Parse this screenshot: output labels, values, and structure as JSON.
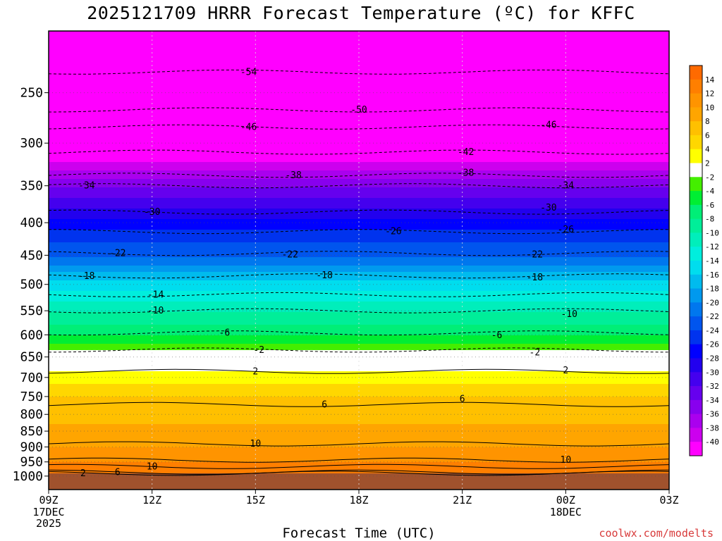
{
  "title": "2025121709 HRRR Forecast Temperature (ºC) for KFFC",
  "credit": "coolwx.com/modelts",
  "chart_data": {
    "type": "heatmap",
    "title": "2025121709 HRRR Forecast Temperature (ºC) for KFFC",
    "xlabel": "Forecast Time (UTC)",
    "ylabel": "",
    "x_ticks": [
      {
        "label": "09Z",
        "sub": [
          "17DEC",
          "2025"
        ],
        "hour": 0
      },
      {
        "label": "12Z",
        "sub": [],
        "hour": 3
      },
      {
        "label": "15Z",
        "sub": [],
        "hour": 6
      },
      {
        "label": "18Z",
        "sub": [],
        "hour": 9
      },
      {
        "label": "21Z",
        "sub": [],
        "hour": 12
      },
      {
        "label": "00Z",
        "sub": [
          "18DEC"
        ],
        "hour": 15
      },
      {
        "label": "03Z",
        "sub": [],
        "hour": 18
      }
    ],
    "xlim": [
      0,
      18
    ],
    "y_ticks": [
      250,
      300,
      350,
      400,
      450,
      500,
      550,
      600,
      650,
      700,
      750,
      800,
      850,
      900,
      950,
      1000
    ],
    "ylim": [
      1050,
      200
    ],
    "y_scale": "log",
    "colorbar": {
      "labels": [
        "14",
        "12",
        "10",
        "8",
        "6",
        "4",
        "2",
        "-2",
        "-4",
        "-6",
        "-8",
        "-10",
        "-12",
        "-14",
        "-16",
        "-18",
        "-20",
        "-22",
        "-24",
        "-26",
        "-28",
        "-30",
        "-32",
        "-34",
        "-36",
        "-38",
        "-40"
      ],
      "colors": [
        "#ff6a00",
        "#ff7f00",
        "#ff9400",
        "#ffa500",
        "#ffc000",
        "#ffd700",
        "#ffff00",
        "#ffffff",
        "#44ee00",
        "#00ee33",
        "#00ee77",
        "#00ee99",
        "#00eebb",
        "#00eedd",
        "#00ddee",
        "#00bbee",
        "#0099ee",
        "#0077ee",
        "#0055ee",
        "#0033ee",
        "#0000ff",
        "#2200ee",
        "#4400ee",
        "#6600ee",
        "#8800ee",
        "#aa00ee",
        "#cc00ee",
        "#ff00ff"
      ]
    },
    "levels_C": [
      {
        "p": 1000,
        "t": 13
      },
      {
        "p": 950,
        "t": 12
      },
      {
        "p": 900,
        "t": 10
      },
      {
        "p": 850,
        "t": 9
      },
      {
        "p": 800,
        "t": 7
      },
      {
        "p": 750,
        "t": 6
      },
      {
        "p": 700,
        "t": 3
      },
      {
        "p": 650,
        "t": 0
      },
      {
        "p": 600,
        "t": -6
      },
      {
        "p": 550,
        "t": -10
      },
      {
        "p": 500,
        "t": -15
      },
      {
        "p": 450,
        "t": -22
      },
      {
        "p": 400,
        "t": -27
      },
      {
        "p": 350,
        "t": -34
      },
      {
        "p": 300,
        "t": -44
      },
      {
        "p": 250,
        "t": -50
      },
      {
        "p": 200,
        "t": -57
      }
    ],
    "surface_pressure": 990,
    "contour_labels": [
      {
        "text": "-54",
        "hour": 5.8,
        "p": 232
      },
      {
        "text": "-50",
        "hour": 9.0,
        "p": 266
      },
      {
        "text": "-46",
        "hour": 5.8,
        "p": 283
      },
      {
        "text": "-46",
        "hour": 14.5,
        "p": 281
      },
      {
        "text": "-42",
        "hour": 12.1,
        "p": 310
      },
      {
        "text": "-38",
        "hour": 7.1,
        "p": 337
      },
      {
        "text": "-38",
        "hour": 12.1,
        "p": 334
      },
      {
        "text": "-34",
        "hour": 1.1,
        "p": 350
      },
      {
        "text": "-34",
        "hour": 15.0,
        "p": 350
      },
      {
        "text": "-30",
        "hour": 3.0,
        "p": 385
      },
      {
        "text": "-30",
        "hour": 14.5,
        "p": 379
      },
      {
        "text": "-26",
        "hour": 10.0,
        "p": 413
      },
      {
        "text": "-26",
        "hour": 15.0,
        "p": 410
      },
      {
        "text": "-22",
        "hour": 2.0,
        "p": 447
      },
      {
        "text": "-22",
        "hour": 7.0,
        "p": 449
      },
      {
        "text": "-22",
        "hour": 14.1,
        "p": 449
      },
      {
        "text": "-18",
        "hour": 1.1,
        "p": 485
      },
      {
        "text": "-18",
        "hour": 8.0,
        "p": 484
      },
      {
        "text": "-18",
        "hour": 14.1,
        "p": 488
      },
      {
        "text": "-14",
        "hour": 3.1,
        "p": 519
      },
      {
        "text": "-10",
        "hour": 3.1,
        "p": 550
      },
      {
        "text": "-10",
        "hour": 15.1,
        "p": 557
      },
      {
        "text": "-6",
        "hour": 5.1,
        "p": 596
      },
      {
        "text": "-6",
        "hour": 13.0,
        "p": 601
      },
      {
        "text": "-2",
        "hour": 6.1,
        "p": 634
      },
      {
        "text": "-2",
        "hour": 14.1,
        "p": 640
      },
      {
        "text": "2",
        "hour": 6.0,
        "p": 685
      },
      {
        "text": "2",
        "hour": 15.0,
        "p": 683
      },
      {
        "text": "6",
        "hour": 8.0,
        "p": 772
      },
      {
        "text": "6",
        "hour": 12.0,
        "p": 757
      },
      {
        "text": "10",
        "hour": 6.0,
        "p": 890
      },
      {
        "text": "10",
        "hour": 15.0,
        "p": 944
      },
      {
        "text": "10",
        "hour": 3.0,
        "p": 966
      },
      {
        "text": "6",
        "hour": 2.0,
        "p": 986
      },
      {
        "text": "2",
        "hour": 1.0,
        "p": 990
      }
    ],
    "grid": true
  }
}
